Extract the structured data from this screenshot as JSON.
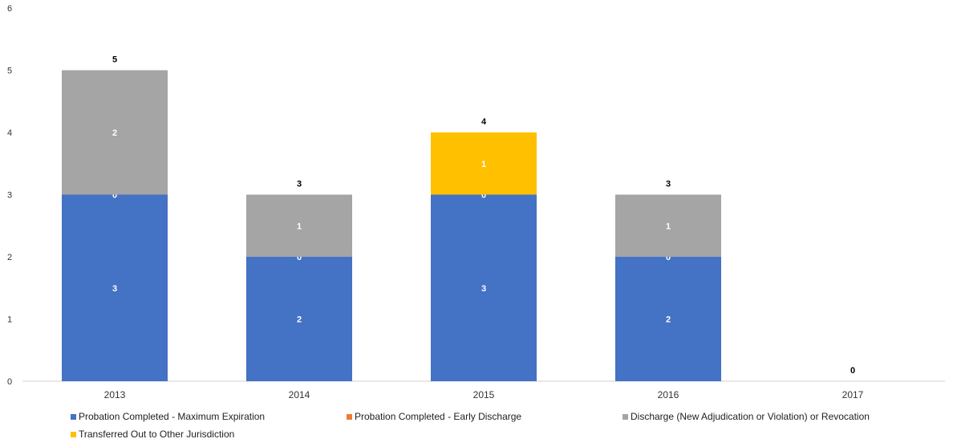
{
  "chart_data": {
    "type": "bar",
    "stacked": true,
    "categories": [
      "2013",
      "2014",
      "2015",
      "2016",
      "2017"
    ],
    "series": [
      {
        "name": "Probation Completed - Maximum Expiration",
        "values": [
          3,
          2,
          3,
          2,
          0
        ],
        "color": "#4472C4"
      },
      {
        "name": "Probation Completed - Early Discharge",
        "values": [
          0,
          0,
          0,
          0,
          0
        ],
        "color": "#ED7D31"
      },
      {
        "name": "Discharge (New Adjudication or Violation) or Revocation",
        "values": [
          2,
          1,
          0,
          1,
          0
        ],
        "color": "#A5A5A5"
      },
      {
        "name": "Transferred Out to Other Jurisdiction",
        "values": [
          0,
          0,
          1,
          0,
          0
        ],
        "color": "#FFC000"
      }
    ],
    "totals": [
      5,
      3,
      4,
      3,
      0
    ],
    "ylim": [
      0,
      6
    ],
    "yticks": [
      "0",
      "1",
      "2",
      "3",
      "4",
      "5",
      "6"
    ],
    "grid": false,
    "legend_position": "bottom"
  }
}
